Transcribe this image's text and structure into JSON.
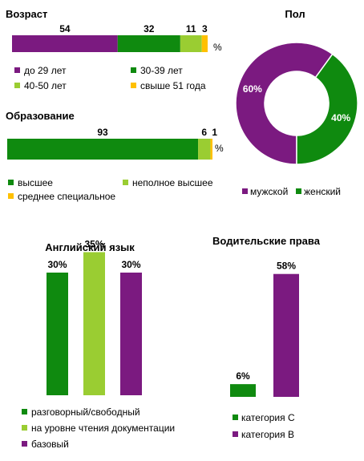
{
  "colors": {
    "purple": "#7b1a80",
    "green": "#0f8a0f",
    "lime": "#9acd32",
    "yellow": "#ffc000"
  },
  "chart_data": [
    {
      "id": "age",
      "type": "bar",
      "orientation": "horizontal-stacked",
      "title": "Возраст",
      "unit": "%",
      "series": [
        {
          "name": "до 29 лет",
          "value": 54,
          "color": "#7b1a80"
        },
        {
          "name": "30-39 лет",
          "value": 32,
          "color": "#0f8a0f"
        },
        {
          "name": "40-50 лет",
          "value": 11,
          "color": "#9acd32"
        },
        {
          "name": "свыше 51 года",
          "value": 3,
          "color": "#ffc000"
        }
      ]
    },
    {
      "id": "education",
      "type": "bar",
      "orientation": "horizontal-stacked",
      "title": "Образование",
      "unit": "%",
      "series": [
        {
          "name": "высшее",
          "value": 93,
          "color": "#0f8a0f"
        },
        {
          "name": "неполное высшее",
          "value": 6,
          "color": "#9acd32"
        },
        {
          "name": "среднее специальное",
          "value": 1,
          "color": "#ffc000"
        }
      ]
    },
    {
      "id": "gender",
      "type": "pie",
      "variant": "donut",
      "title": "Пол",
      "series": [
        {
          "name": "мужской",
          "value": 60,
          "label": "60%",
          "color": "#7b1a80"
        },
        {
          "name": "женский",
          "value": 40,
          "label": "40%",
          "color": "#0f8a0f"
        }
      ]
    },
    {
      "id": "english",
      "type": "bar",
      "title": "Английский язык",
      "ylim": [
        0,
        50
      ],
      "series": [
        {
          "name": "разговорный/свободный",
          "value": 30,
          "label": "30%",
          "color": "#0f8a0f"
        },
        {
          "name": "на уровне чтения документации",
          "value": 35,
          "label": "35%",
          "color": "#9acd32"
        },
        {
          "name": "базовый",
          "value": 30,
          "label": "30%",
          "color": "#7b1a80"
        }
      ]
    },
    {
      "id": "license",
      "type": "bar",
      "title": "Водительские права",
      "ylim": [
        0,
        70
      ],
      "series": [
        {
          "name": "категория C",
          "value": 6,
          "label": "6%",
          "color": "#0f8a0f"
        },
        {
          "name": "категория B",
          "value": 58,
          "label": "58%",
          "color": "#7b1a80"
        }
      ]
    }
  ]
}
